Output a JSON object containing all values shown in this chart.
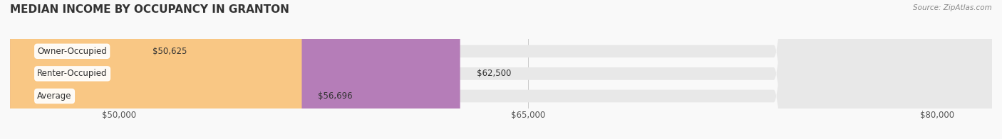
{
  "title": "MEDIAN INCOME BY OCCUPANCY IN GRANTON",
  "source": "Source: ZipAtlas.com",
  "categories": [
    "Owner-Occupied",
    "Renter-Occupied",
    "Average"
  ],
  "values": [
    50625,
    62500,
    56696
  ],
  "bar_colors": [
    "#63cdd4",
    "#b57db8",
    "#f9c784"
  ],
  "bar_bg_color": "#eeeeee",
  "label_bg_color": "#ffffff",
  "xlim": [
    46000,
    82000
  ],
  "xticks": [
    50000,
    65000,
    80000
  ],
  "xtick_labels": [
    "$50,000",
    "$65,000",
    "$80,000"
  ],
  "value_labels": [
    "$50,625",
    "$62,500",
    "$56,696"
  ],
  "bar_height": 0.55,
  "background_color": "#f9f9f9",
  "title_fontsize": 11,
  "tick_fontsize": 8.5,
  "label_fontsize": 8.5,
  "value_fontsize": 8.5
}
